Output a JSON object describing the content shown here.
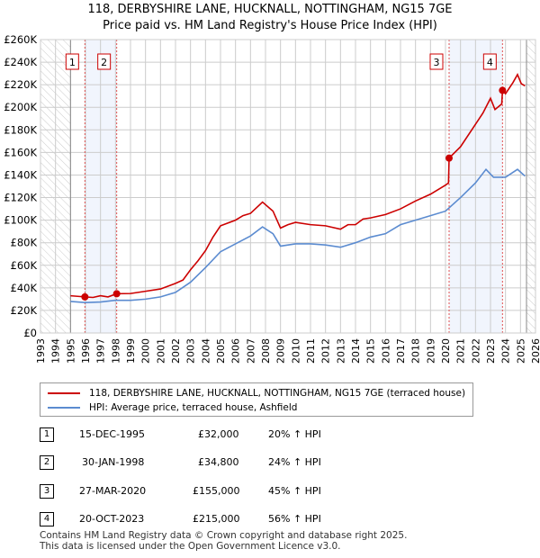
{
  "title": {
    "line1": "118, DERBYSHIRE LANE, HUCKNALL, NOTTINGHAM, NG15 7GE",
    "line2": "Price paid vs. HM Land Registry's House Price Index (HPI)"
  },
  "chart_data": {
    "type": "line",
    "xlim": [
      1993,
      2026
    ],
    "ylim": [
      0,
      260000
    ],
    "x_ticks": [
      "1993",
      "1994",
      "1995",
      "1996",
      "1997",
      "1998",
      "1999",
      "2000",
      "2001",
      "2002",
      "2003",
      "2004",
      "2005",
      "2006",
      "2007",
      "2008",
      "2009",
      "2010",
      "2011",
      "2012",
      "2013",
      "2014",
      "2015",
      "2016",
      "2017",
      "2018",
      "2019",
      "2020",
      "2021",
      "2022",
      "2023",
      "2024",
      "2025",
      "2026"
    ],
    "y_ticks": [
      "£0",
      "£20K",
      "£40K",
      "£60K",
      "£80K",
      "£100K",
      "£120K",
      "£140K",
      "£160K",
      "£180K",
      "£200K",
      "£220K",
      "£240K",
      "£260K"
    ],
    "hatched_before": 1995,
    "hatched_after": 2025.4,
    "series": [
      {
        "name": "118, DERBYSHIRE LANE, HUCKNALL, NOTTINGHAM, NG15 7GE (terraced house)",
        "color": "#cc0000",
        "points": [
          [
            1995,
            33000
          ],
          [
            1995.95,
            32000
          ],
          [
            1996.5,
            31500
          ],
          [
            1997,
            33000
          ],
          [
            1997.5,
            32000
          ],
          [
            1998.08,
            34800
          ],
          [
            1999,
            35000
          ],
          [
            2000,
            37000
          ],
          [
            2001,
            39000
          ],
          [
            2002,
            44000
          ],
          [
            2002.5,
            47000
          ],
          [
            2003,
            56000
          ],
          [
            2003.5,
            64000
          ],
          [
            2004,
            73000
          ],
          [
            2004.5,
            85000
          ],
          [
            2005,
            95000
          ],
          [
            2006,
            100000
          ],
          [
            2006.5,
            104000
          ],
          [
            2007,
            106000
          ],
          [
            2007.8,
            116000
          ],
          [
            2008.5,
            108000
          ],
          [
            2009,
            93000
          ],
          [
            2009.5,
            96000
          ],
          [
            2010,
            98000
          ],
          [
            2011,
            96000
          ],
          [
            2012,
            95000
          ],
          [
            2013,
            92000
          ],
          [
            2013.5,
            96000
          ],
          [
            2014,
            96000
          ],
          [
            2014.5,
            101000
          ],
          [
            2015,
            102000
          ],
          [
            2016,
            105000
          ],
          [
            2017,
            110000
          ],
          [
            2018,
            117000
          ],
          [
            2019,
            123000
          ],
          [
            2020,
            131000
          ],
          [
            2020.2,
            133000
          ],
          [
            2020.24,
            155000
          ],
          [
            2021,
            165000
          ],
          [
            2022,
            185000
          ],
          [
            2022.5,
            195000
          ],
          [
            2023,
            208000
          ],
          [
            2023.3,
            198000
          ],
          [
            2023.75,
            203000
          ],
          [
            2023.8,
            215000
          ],
          [
            2024,
            212000
          ],
          [
            2024.5,
            222000
          ],
          [
            2024.8,
            229000
          ],
          [
            2025.05,
            221000
          ],
          [
            2025.3,
            219000
          ]
        ]
      },
      {
        "name": "HPI: Average price, terraced house, Ashfield",
        "color": "#5b8bd0",
        "points": [
          [
            1995,
            28000
          ],
          [
            1996,
            27000
          ],
          [
            1997,
            27500
          ],
          [
            1998,
            29000
          ],
          [
            1999,
            29000
          ],
          [
            2000,
            30000
          ],
          [
            2001,
            32000
          ],
          [
            2002,
            36000
          ],
          [
            2003,
            45000
          ],
          [
            2004,
            58000
          ],
          [
            2005,
            72000
          ],
          [
            2006,
            79000
          ],
          [
            2007,
            86000
          ],
          [
            2007.8,
            94000
          ],
          [
            2008.5,
            88000
          ],
          [
            2009,
            77000
          ],
          [
            2010,
            79000
          ],
          [
            2011,
            79000
          ],
          [
            2012,
            78000
          ],
          [
            2013,
            76000
          ],
          [
            2014,
            80000
          ],
          [
            2015,
            85000
          ],
          [
            2016,
            88000
          ],
          [
            2017,
            96000
          ],
          [
            2018,
            100000
          ],
          [
            2019,
            104000
          ],
          [
            2020,
            108000
          ],
          [
            2021,
            120000
          ],
          [
            2022,
            133000
          ],
          [
            2022.7,
            145000
          ],
          [
            2023.2,
            138000
          ],
          [
            2024,
            138000
          ],
          [
            2024.8,
            145000
          ],
          [
            2025.3,
            139000
          ]
        ]
      }
    ],
    "sales": [
      {
        "label": "1",
        "x": 1995.96,
        "y": 32000
      },
      {
        "label": "2",
        "x": 1998.08,
        "y": 34800
      },
      {
        "label": "3",
        "x": 2020.24,
        "y": 155000
      },
      {
        "label": "4",
        "x": 2023.8,
        "y": 215000
      }
    ]
  },
  "legend": [
    "118, DERBYSHIRE LANE, HUCKNALL, NOTTINGHAM, NG15 7GE (terraced house)",
    "HPI: Average price, terraced house, Ashfield"
  ],
  "table": [
    {
      "num": "1",
      "date": "15-DEC-1995",
      "price": "£32,000",
      "hpi": "20% ↑ HPI"
    },
    {
      "num": "2",
      "date": "30-JAN-1998",
      "price": "£34,800",
      "hpi": "24% ↑ HPI"
    },
    {
      "num": "3",
      "date": "27-MAR-2020",
      "price": "£155,000",
      "hpi": "45% ↑ HPI"
    },
    {
      "num": "4",
      "date": "20-OCT-2023",
      "price": "£215,000",
      "hpi": "56% ↑ HPI"
    }
  ],
  "footer": {
    "line1": "Contains HM Land Registry data © Crown copyright and database right 2025.",
    "line2": "This data is licensed under the Open Government Licence v3.0."
  }
}
